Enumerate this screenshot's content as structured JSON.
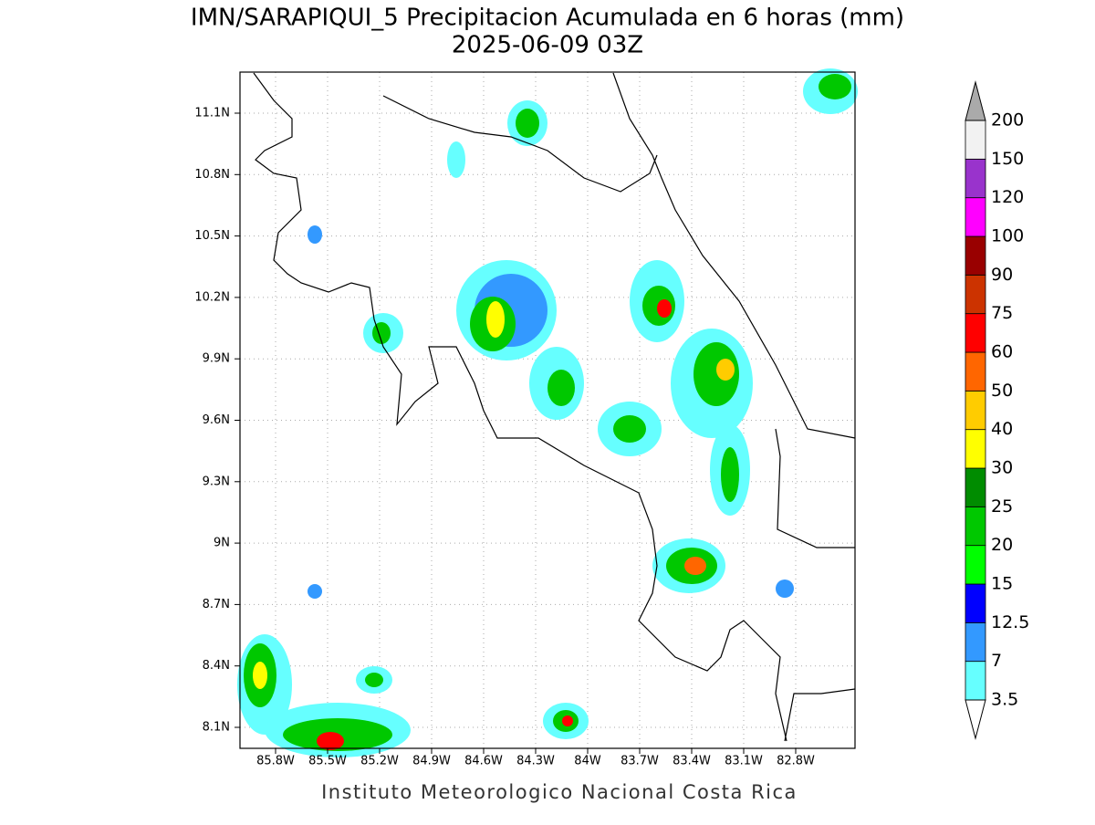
{
  "title": "IMN/SARAPIQUI_5 Precipitacion Acumulada en 6 horas (mm)",
  "subtitle": "2025-06-09 03Z",
  "x_labels": [
    "85.8W",
    "85.5W",
    "85.2W",
    "84.9W",
    "84.6W",
    "84.3W",
    "84W",
    "83.7W",
    "83.4W",
    "83.1W",
    "82.8W"
  ],
  "y_labels": [
    "11.1N",
    "10.8N",
    "10.5N",
    "10.2N",
    "9.9N",
    "9.6N",
    "9.3N",
    "9N",
    "8.7N",
    "8.4N",
    "8.1N"
  ],
  "footer": "Instituto Meteorologico Nacional Costa Rica",
  "colorbar": {
    "levels": [
      3.5,
      7,
      12.5,
      15,
      20,
      25,
      30,
      40,
      50,
      60,
      75,
      90,
      100,
      120,
      150,
      200
    ],
    "colors": [
      "#66ffff",
      "#3399ff",
      "#0000ff",
      "#00ff00",
      "#00c800",
      "#008c00",
      "#ffff00",
      "#ffcc00",
      "#ff6600",
      "#ff0000",
      "#cc3300",
      "#990000",
      "#ff00ff",
      "#9933cc",
      "#f2f2f2"
    ],
    "over_color": "#aaaaaa",
    "under_color": "#ffffff"
  }
}
